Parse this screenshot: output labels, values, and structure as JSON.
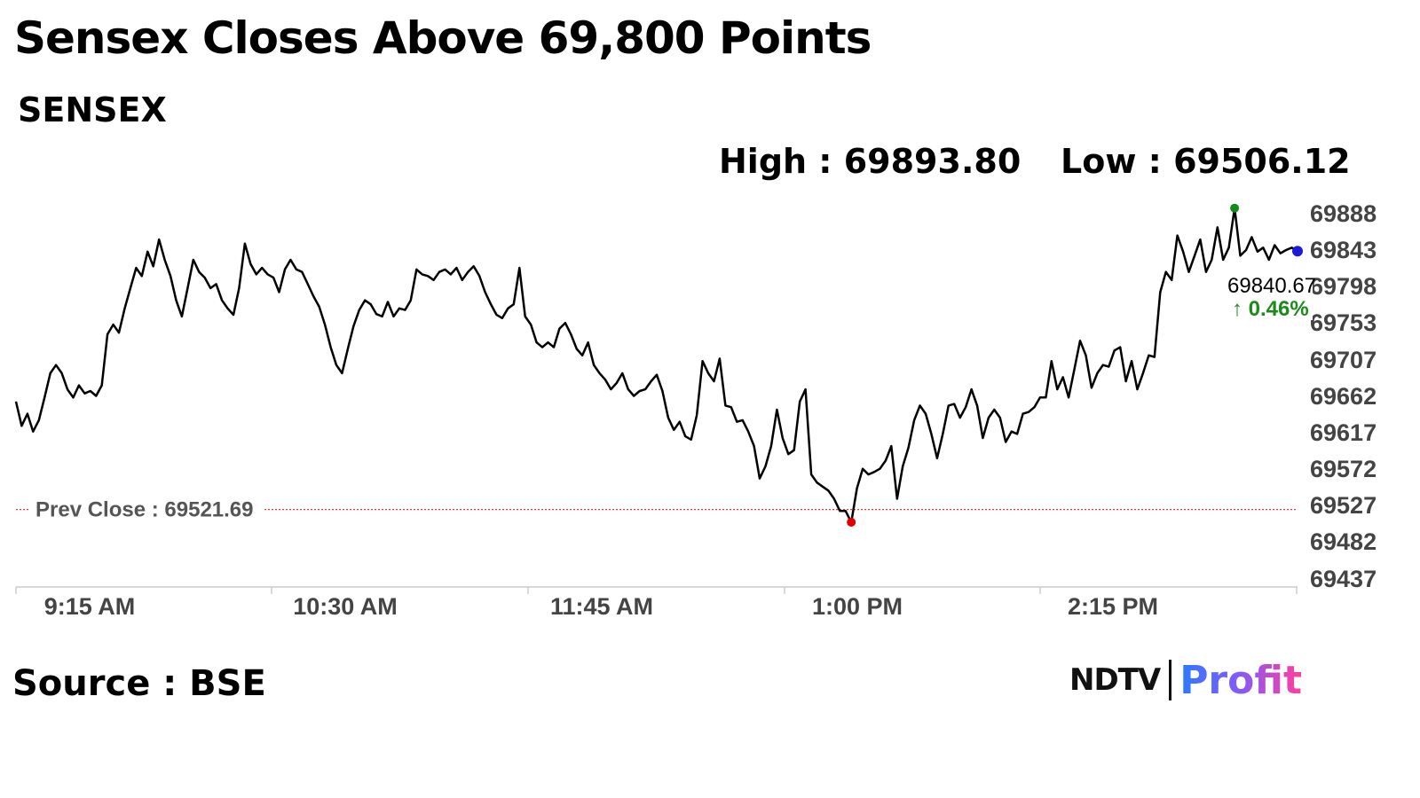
{
  "header": {
    "title": "Sensex Closes Above 69,800 Points",
    "subtitle": "SENSEX",
    "high_text": "High : 69893.80",
    "low_text": "Low : 69506.12"
  },
  "footer": {
    "source": "Source : BSE",
    "logo_ndtv": "NDTV",
    "logo_profit": "Profit"
  },
  "colors": {
    "line": "#000000",
    "prev_close": "#e53935",
    "high_marker": "#138a1c",
    "low_marker": "#e00000",
    "last_marker": "#1a1ad8",
    "change_up": "#1a8a1a",
    "axis": "#cccccc"
  },
  "chart_data": {
    "type": "line",
    "series": [
      {
        "values": [
          [
            0,
            69655
          ],
          [
            1,
            69625
          ],
          [
            2,
            69640
          ],
          [
            3,
            69618
          ],
          [
            4,
            69632
          ],
          [
            5,
            69660
          ],
          [
            6,
            69690
          ],
          [
            7,
            69700
          ],
          [
            8,
            69690
          ],
          [
            9,
            69670
          ],
          [
            10,
            69660
          ],
          [
            11,
            69675
          ],
          [
            12,
            69665
          ],
          [
            13,
            69668
          ],
          [
            14,
            69662
          ],
          [
            15,
            69675
          ],
          [
            16,
            69738
          ],
          [
            17,
            69750
          ],
          [
            18,
            69740
          ],
          [
            19,
            69770
          ],
          [
            20,
            69795
          ],
          [
            21,
            69820
          ],
          [
            22,
            69810
          ],
          [
            23,
            69840
          ],
          [
            24,
            69822
          ],
          [
            25,
            69855
          ],
          [
            26,
            69830
          ],
          [
            27,
            69810
          ],
          [
            28,
            69780
          ],
          [
            29,
            69760
          ],
          [
            30,
            69795
          ],
          [
            31,
            69830
          ],
          [
            32,
            69815
          ],
          [
            33,
            69808
          ],
          [
            34,
            69795
          ],
          [
            35,
            69800
          ],
          [
            36,
            69780
          ],
          [
            37,
            69770
          ],
          [
            38,
            69762
          ],
          [
            39,
            69795
          ],
          [
            40,
            69850
          ],
          [
            41,
            69825
          ],
          [
            42,
            69812
          ],
          [
            43,
            69820
          ],
          [
            44,
            69812
          ],
          [
            45,
            69808
          ],
          [
            46,
            69790
          ],
          [
            47,
            69818
          ],
          [
            48,
            69830
          ],
          [
            49,
            69818
          ],
          [
            50,
            69815
          ],
          [
            51,
            69800
          ],
          [
            52,
            69785
          ],
          [
            53,
            69772
          ],
          [
            54,
            69750
          ],
          [
            55,
            69722
          ],
          [
            56,
            69700
          ],
          [
            57,
            69690
          ],
          [
            58,
            69720
          ],
          [
            59,
            69748
          ],
          [
            60,
            69768
          ],
          [
            61,
            69780
          ],
          [
            62,
            69775
          ],
          [
            63,
            69763
          ],
          [
            64,
            69760
          ],
          [
            65,
            69778
          ],
          [
            66,
            69760
          ],
          [
            67,
            69770
          ],
          [
            68,
            69768
          ],
          [
            69,
            69780
          ],
          [
            70,
            69818
          ],
          [
            71,
            69812
          ],
          [
            72,
            69810
          ],
          [
            73,
            69805
          ],
          [
            74,
            69815
          ],
          [
            75,
            69818
          ],
          [
            76,
            69812
          ],
          [
            77,
            69820
          ],
          [
            78,
            69805
          ],
          [
            79,
            69815
          ],
          [
            80,
            69822
          ],
          [
            81,
            69810
          ],
          [
            82,
            69790
          ],
          [
            83,
            69775
          ],
          [
            84,
            69762
          ],
          [
            85,
            69758
          ],
          [
            86,
            69770
          ],
          [
            87,
            69775
          ],
          [
            88,
            69820
          ],
          [
            89,
            69760
          ],
          [
            90,
            69750
          ],
          [
            91,
            69728
          ],
          [
            92,
            69722
          ],
          [
            93,
            69728
          ],
          [
            94,
            69722
          ],
          [
            95,
            69745
          ],
          [
            96,
            69752
          ],
          [
            97,
            69738
          ],
          [
            98,
            69720
          ],
          [
            99,
            69712
          ],
          [
            100,
            69728
          ],
          [
            101,
            69700
          ],
          [
            102,
            69690
          ],
          [
            103,
            69682
          ],
          [
            104,
            69670
          ],
          [
            105,
            69678
          ],
          [
            106,
            69690
          ],
          [
            107,
            69670
          ],
          [
            108,
            69662
          ],
          [
            109,
            69668
          ],
          [
            110,
            69670
          ],
          [
            111,
            69680
          ],
          [
            112,
            69688
          ],
          [
            113,
            69668
          ],
          [
            114,
            69635
          ],
          [
            115,
            69620
          ],
          [
            116,
            69630
          ],
          [
            117,
            69612
          ],
          [
            118,
            69608
          ],
          [
            119,
            69638
          ],
          [
            120,
            69705
          ],
          [
            121,
            69690
          ],
          [
            122,
            69680
          ],
          [
            123,
            69708
          ],
          [
            124,
            69650
          ],
          [
            125,
            69648
          ],
          [
            126,
            69630
          ],
          [
            127,
            69632
          ],
          [
            128,
            69618
          ],
          [
            129,
            69600
          ],
          [
            130,
            69560
          ],
          [
            131,
            69575
          ],
          [
            132,
            69600
          ],
          [
            133,
            69645
          ],
          [
            134,
            69610
          ],
          [
            135,
            69590
          ],
          [
            136,
            69595
          ],
          [
            137,
            69655
          ],
          [
            138,
            69670
          ],
          [
            139,
            69565
          ],
          [
            140,
            69555
          ],
          [
            141,
            69550
          ],
          [
            142,
            69545
          ],
          [
            143,
            69535
          ],
          [
            144,
            69520
          ],
          [
            145,
            69520
          ],
          [
            146,
            69506
          ],
          [
            147,
            69548
          ],
          [
            148,
            69572
          ],
          [
            149,
            69565
          ],
          [
            150,
            69568
          ],
          [
            151,
            69572
          ],
          [
            152,
            69582
          ],
          [
            153,
            69600
          ],
          [
            154,
            69535
          ],
          [
            155,
            69575
          ],
          [
            156,
            69598
          ],
          [
            157,
            69632
          ],
          [
            158,
            69650
          ],
          [
            159,
            69640
          ],
          [
            160,
            69615
          ],
          [
            161,
            69585
          ],
          [
            162,
            69615
          ],
          [
            163,
            69650
          ],
          [
            164,
            69652
          ],
          [
            165,
            69635
          ],
          [
            166,
            69648
          ],
          [
            167,
            69670
          ],
          [
            168,
            69650
          ],
          [
            169,
            69610
          ],
          [
            170,
            69635
          ],
          [
            171,
            69645
          ],
          [
            172,
            69635
          ],
          [
            173,
            69605
          ],
          [
            174,
            69618
          ],
          [
            175,
            69615
          ],
          [
            176,
            69640
          ],
          [
            177,
            69642
          ],
          [
            178,
            69648
          ],
          [
            179,
            69660
          ],
          [
            180,
            69660
          ],
          [
            181,
            69705
          ],
          [
            182,
            69670
          ],
          [
            183,
            69685
          ],
          [
            184,
            69660
          ],
          [
            185,
            69695
          ],
          [
            186,
            69730
          ],
          [
            187,
            69712
          ],
          [
            188,
            69672
          ],
          [
            189,
            69690
          ],
          [
            190,
            69700
          ],
          [
            191,
            69698
          ],
          [
            192,
            69718
          ],
          [
            193,
            69722
          ],
          [
            194,
            69680
          ],
          [
            195,
            69705
          ],
          [
            196,
            69670
          ],
          [
            197,
            69690
          ],
          [
            198,
            69712
          ],
          [
            199,
            69710
          ],
          [
            200,
            69790
          ],
          [
            201,
            69815
          ],
          [
            202,
            69805
          ],
          [
            203,
            69860
          ],
          [
            204,
            69840
          ],
          [
            205,
            69815
          ],
          [
            206,
            69835
          ],
          [
            207,
            69855
          ],
          [
            208,
            69815
          ],
          [
            209,
            69830
          ],
          [
            210,
            69870
          ],
          [
            211,
            69830
          ],
          [
            212,
            69845
          ],
          [
            213,
            69893.8
          ],
          [
            214,
            69835
          ],
          [
            215,
            69842
          ],
          [
            216,
            69858
          ],
          [
            217,
            69840
          ],
          [
            218,
            69845
          ],
          [
            219,
            69830
          ],
          [
            220,
            69848
          ],
          [
            221,
            69838
          ],
          [
            222,
            69842
          ],
          [
            223,
            69845
          ],
          [
            224,
            69840.67
          ]
        ]
      }
    ],
    "x_tick_labels": [
      "9:15 AM",
      "10:30 AM",
      "11:45 AM",
      "1:00 PM",
      "2:15 PM"
    ],
    "y_tick_labels": [
      "69888",
      "69843",
      "69798",
      "69753",
      "69707",
      "69662",
      "69617",
      "69572",
      "69527",
      "69482",
      "69437"
    ],
    "ylim": [
      69437,
      69888
    ],
    "prev_close": 69521.69,
    "prev_close_label": "Prev Close : 69521.69",
    "high": 69893.8,
    "low": 69506.12,
    "last_value_label": "69840.67",
    "change_label": "↑ 0.46%",
    "grid": false
  }
}
